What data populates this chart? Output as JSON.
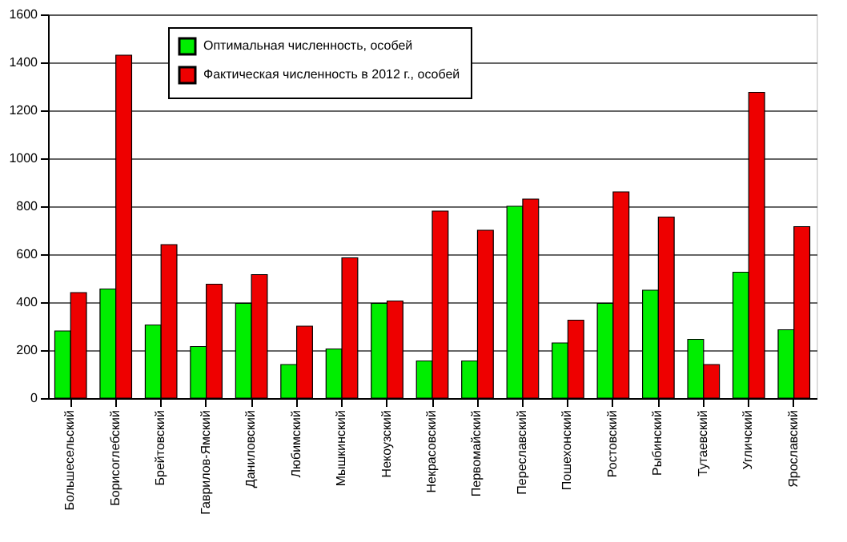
{
  "chart_data": {
    "type": "bar",
    "categories": [
      "Большесельский",
      "Борисоглебский",
      "Брейтовский",
      "Гаврилов-Ямский",
      "Даниловский",
      "Любимский",
      "Мышкинский",
      "Некоузский",
      "Некрасовский",
      "Первомайский",
      "Переславский",
      "Пошехонский",
      "Ростовский",
      "Рыбинский",
      "Тутаевский",
      "Угличский",
      "Ярославский"
    ],
    "series": [
      {
        "name": "Оптимальная численность, особей",
        "color": "#00ee00",
        "values": [
          280,
          455,
          305,
          215,
          395,
          140,
          205,
          395,
          155,
          155,
          800,
          230,
          395,
          450,
          245,
          525,
          285
        ]
      },
      {
        "name": "Фактическая численность в 2012 г., особей",
        "color": "#ee0000",
        "values": [
          440,
          1430,
          640,
          475,
          515,
          300,
          585,
          405,
          780,
          700,
          830,
          325,
          860,
          755,
          140,
          1275,
          715
        ]
      }
    ],
    "ylim": [
      0,
      1600
    ],
    "yticks": [
      0,
      200,
      400,
      600,
      800,
      1000,
      1200,
      1400,
      1600
    ],
    "grid": "y",
    "legend": "top left"
  }
}
